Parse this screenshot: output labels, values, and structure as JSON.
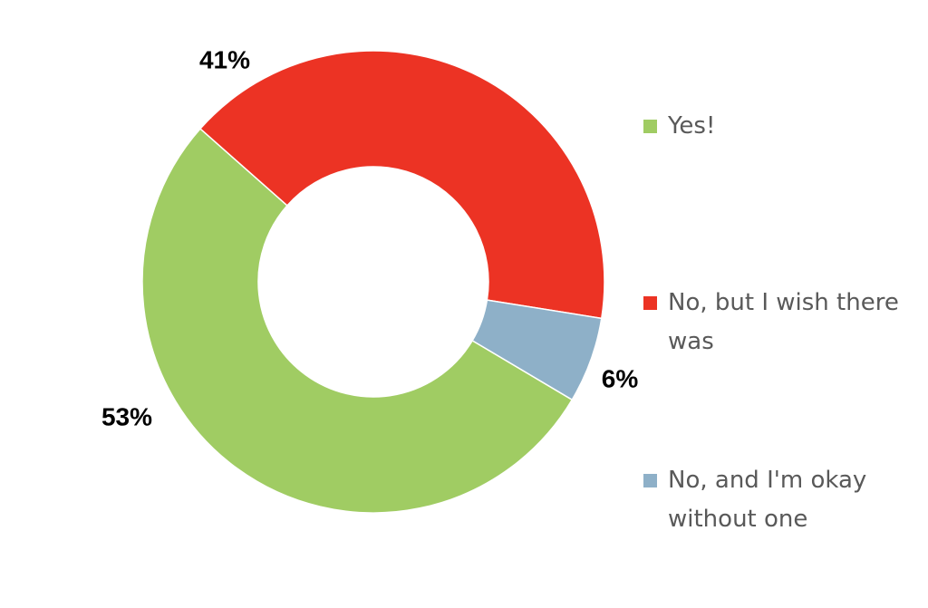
{
  "chart_data": {
    "type": "donut",
    "categories": [
      "Yes!",
      "No, but I wish there was",
      "No, and I'm okay without one"
    ],
    "values": [
      53,
      41,
      6
    ],
    "value_labels": [
      "53%",
      "41%",
      "6%"
    ],
    "colors": [
      "#a0cc63",
      "#ec3324",
      "#8eb0c8"
    ],
    "legend": "right"
  }
}
